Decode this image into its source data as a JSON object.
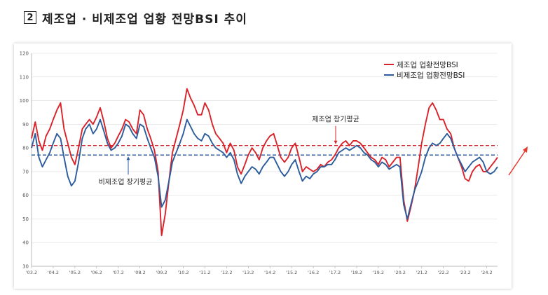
{
  "header": {
    "number": "2",
    "title": "제조업 · 비제조업 업황 전망BSI 추이"
  },
  "colors": {
    "manufacturing": "#d9232a",
    "non_manufacturing": "#2c5c9c",
    "arrow": "#e53b2c",
    "grid": "#dddddd"
  },
  "chart_data": {
    "type": "line",
    "title": "제조업 · 비제조업 업황 전망BSI 추이",
    "xlabel": "",
    "ylabel": "",
    "ylim": [
      30,
      120
    ],
    "yticks": [
      30,
      40,
      50,
      60,
      70,
      80,
      90,
      100,
      110,
      120
    ],
    "xticks": [
      "'03.2",
      "'04.2",
      "'05.2",
      "'06.2",
      "'07.2",
      "'08.2",
      "'09.2",
      "'10.2",
      "'11.2",
      "'12.2",
      "'13.2",
      "'14.2",
      "'15.2",
      "'16.2",
      "'17.2",
      "'18.2",
      "'19.2",
      "'20.2",
      "'21.2",
      "'22.2",
      "'23.2",
      "'24.2"
    ],
    "x_start": 2003.08,
    "x_end": 2024.58,
    "grid": true,
    "legend": "top-right",
    "series": [
      {
        "name": "제조업 업황전망BSI",
        "color": "#d9232a",
        "points": [
          [
            2003.08,
            84
          ],
          [
            2003.25,
            91
          ],
          [
            2003.42,
            83
          ],
          [
            2003.58,
            79
          ],
          [
            2003.75,
            85
          ],
          [
            2003.92,
            88
          ],
          [
            2004.08,
            92
          ],
          [
            2004.25,
            96
          ],
          [
            2004.42,
            99
          ],
          [
            2004.58,
            88
          ],
          [
            2004.75,
            82
          ],
          [
            2004.92,
            76
          ],
          [
            2005.08,
            73
          ],
          [
            2005.25,
            80
          ],
          [
            2005.42,
            88
          ],
          [
            2005.58,
            90
          ],
          [
            2005.75,
            92
          ],
          [
            2005.92,
            90
          ],
          [
            2006.08,
            93
          ],
          [
            2006.25,
            97
          ],
          [
            2006.42,
            91
          ],
          [
            2006.58,
            84
          ],
          [
            2006.75,
            80
          ],
          [
            2006.92,
            82
          ],
          [
            2007.08,
            85
          ],
          [
            2007.25,
            88
          ],
          [
            2007.42,
            92
          ],
          [
            2007.58,
            91
          ],
          [
            2007.75,
            88
          ],
          [
            2007.92,
            86
          ],
          [
            2008.08,
            96
          ],
          [
            2008.25,
            94
          ],
          [
            2008.42,
            88
          ],
          [
            2008.58,
            84
          ],
          [
            2008.75,
            79
          ],
          [
            2008.92,
            70
          ],
          [
            2009.08,
            43
          ],
          [
            2009.25,
            52
          ],
          [
            2009.42,
            66
          ],
          [
            2009.58,
            78
          ],
          [
            2009.75,
            84
          ],
          [
            2009.92,
            90
          ],
          [
            2010.08,
            96
          ],
          [
            2010.25,
            105
          ],
          [
            2010.42,
            101
          ],
          [
            2010.58,
            98
          ],
          [
            2010.75,
            94
          ],
          [
            2010.92,
            94
          ],
          [
            2011.08,
            99
          ],
          [
            2011.25,
            96
          ],
          [
            2011.42,
            90
          ],
          [
            2011.58,
            86
          ],
          [
            2011.75,
            84
          ],
          [
            2011.92,
            82
          ],
          [
            2012.08,
            78
          ],
          [
            2012.25,
            82
          ],
          [
            2012.42,
            79
          ],
          [
            2012.58,
            72
          ],
          [
            2012.75,
            69
          ],
          [
            2012.92,
            73
          ],
          [
            2013.08,
            77
          ],
          [
            2013.25,
            80
          ],
          [
            2013.42,
            78
          ],
          [
            2013.58,
            75
          ],
          [
            2013.75,
            80
          ],
          [
            2013.92,
            83
          ],
          [
            2014.08,
            85
          ],
          [
            2014.25,
            86
          ],
          [
            2014.42,
            81
          ],
          [
            2014.58,
            76
          ],
          [
            2014.75,
            74
          ],
          [
            2014.92,
            76
          ],
          [
            2015.08,
            80
          ],
          [
            2015.25,
            82
          ],
          [
            2015.42,
            76
          ],
          [
            2015.58,
            70
          ],
          [
            2015.75,
            72
          ],
          [
            2015.92,
            71
          ],
          [
            2016.08,
            70
          ],
          [
            2016.25,
            71
          ],
          [
            2016.42,
            73
          ],
          [
            2016.58,
            72
          ],
          [
            2016.75,
            74
          ],
          [
            2016.92,
            75
          ],
          [
            2017.08,
            77
          ],
          [
            2017.25,
            80
          ],
          [
            2017.42,
            82
          ],
          [
            2017.58,
            83
          ],
          [
            2017.75,
            81
          ],
          [
            2017.92,
            83
          ],
          [
            2018.08,
            83
          ],
          [
            2018.25,
            82
          ],
          [
            2018.42,
            80
          ],
          [
            2018.58,
            78
          ],
          [
            2018.75,
            76
          ],
          [
            2018.92,
            75
          ],
          [
            2019.08,
            73
          ],
          [
            2019.25,
            76
          ],
          [
            2019.42,
            75
          ],
          [
            2019.58,
            72
          ],
          [
            2019.75,
            74
          ],
          [
            2019.92,
            76
          ],
          [
            2020.08,
            76
          ],
          [
            2020.25,
            58
          ],
          [
            2020.42,
            49
          ],
          [
            2020.58,
            55
          ],
          [
            2020.75,
            62
          ],
          [
            2020.92,
            72
          ],
          [
            2021.08,
            82
          ],
          [
            2021.25,
            90
          ],
          [
            2021.42,
            97
          ],
          [
            2021.58,
            99
          ],
          [
            2021.75,
            96
          ],
          [
            2021.92,
            92
          ],
          [
            2022.08,
            92
          ],
          [
            2022.25,
            88
          ],
          [
            2022.42,
            86
          ],
          [
            2022.58,
            80
          ],
          [
            2022.75,
            76
          ],
          [
            2022.92,
            72
          ],
          [
            2023.08,
            67
          ],
          [
            2023.25,
            66
          ],
          [
            2023.42,
            70
          ],
          [
            2023.58,
            72
          ],
          [
            2023.75,
            73
          ],
          [
            2023.92,
            70
          ],
          [
            2024.08,
            70
          ],
          [
            2024.25,
            72
          ],
          [
            2024.42,
            74
          ],
          [
            2024.58,
            76
          ]
        ]
      },
      {
        "name": "비제조업 업황전망BSI",
        "color": "#2c5c9c",
        "points": [
          [
            2003.08,
            80
          ],
          [
            2003.25,
            86
          ],
          [
            2003.42,
            76
          ],
          [
            2003.58,
            72
          ],
          [
            2003.75,
            75
          ],
          [
            2003.92,
            78
          ],
          [
            2004.08,
            82
          ],
          [
            2004.25,
            86
          ],
          [
            2004.42,
            84
          ],
          [
            2004.58,
            76
          ],
          [
            2004.75,
            68
          ],
          [
            2004.92,
            64
          ],
          [
            2005.08,
            66
          ],
          [
            2005.25,
            74
          ],
          [
            2005.42,
            84
          ],
          [
            2005.58,
            88
          ],
          [
            2005.75,
            90
          ],
          [
            2005.92,
            86
          ],
          [
            2006.08,
            88
          ],
          [
            2006.25,
            92
          ],
          [
            2006.42,
            87
          ],
          [
            2006.58,
            82
          ],
          [
            2006.75,
            79
          ],
          [
            2006.92,
            80
          ],
          [
            2007.08,
            82
          ],
          [
            2007.25,
            85
          ],
          [
            2007.42,
            90
          ],
          [
            2007.58,
            89
          ],
          [
            2007.75,
            86
          ],
          [
            2007.92,
            84
          ],
          [
            2008.08,
            90
          ],
          [
            2008.25,
            89
          ],
          [
            2008.42,
            84
          ],
          [
            2008.58,
            80
          ],
          [
            2008.75,
            76
          ],
          [
            2008.92,
            68
          ],
          [
            2009.08,
            55
          ],
          [
            2009.25,
            58
          ],
          [
            2009.42,
            66
          ],
          [
            2009.58,
            74
          ],
          [
            2009.75,
            78
          ],
          [
            2009.92,
            82
          ],
          [
            2010.08,
            86
          ],
          [
            2010.25,
            92
          ],
          [
            2010.42,
            89
          ],
          [
            2010.58,
            86
          ],
          [
            2010.75,
            84
          ],
          [
            2010.92,
            83
          ],
          [
            2011.08,
            86
          ],
          [
            2011.25,
            85
          ],
          [
            2011.42,
            82
          ],
          [
            2011.58,
            80
          ],
          [
            2011.75,
            79
          ],
          [
            2011.92,
            78
          ],
          [
            2012.08,
            76
          ],
          [
            2012.25,
            78
          ],
          [
            2012.42,
            75
          ],
          [
            2012.58,
            69
          ],
          [
            2012.75,
            65
          ],
          [
            2012.92,
            68
          ],
          [
            2013.08,
            70
          ],
          [
            2013.25,
            72
          ],
          [
            2013.42,
            71
          ],
          [
            2013.58,
            69
          ],
          [
            2013.75,
            72
          ],
          [
            2013.92,
            74
          ],
          [
            2014.08,
            76
          ],
          [
            2014.25,
            76
          ],
          [
            2014.42,
            73
          ],
          [
            2014.58,
            70
          ],
          [
            2014.75,
            68
          ],
          [
            2014.92,
            70
          ],
          [
            2015.08,
            73
          ],
          [
            2015.25,
            75
          ],
          [
            2015.42,
            70
          ],
          [
            2015.58,
            66
          ],
          [
            2015.75,
            68
          ],
          [
            2015.92,
            67
          ],
          [
            2016.08,
            69
          ],
          [
            2016.25,
            70
          ],
          [
            2016.42,
            72
          ],
          [
            2016.58,
            72
          ],
          [
            2016.75,
            73
          ],
          [
            2016.92,
            73
          ],
          [
            2017.08,
            75
          ],
          [
            2017.25,
            78
          ],
          [
            2017.42,
            79
          ],
          [
            2017.58,
            80
          ],
          [
            2017.75,
            79
          ],
          [
            2017.92,
            80
          ],
          [
            2018.08,
            81
          ],
          [
            2018.25,
            80
          ],
          [
            2018.42,
            78
          ],
          [
            2018.58,
            77
          ],
          [
            2018.75,
            75
          ],
          [
            2018.92,
            74
          ],
          [
            2019.08,
            72
          ],
          [
            2019.25,
            74
          ],
          [
            2019.42,
            73
          ],
          [
            2019.58,
            71
          ],
          [
            2019.75,
            72
          ],
          [
            2019.92,
            73
          ],
          [
            2020.08,
            72
          ],
          [
            2020.25,
            56
          ],
          [
            2020.42,
            50
          ],
          [
            2020.58,
            56
          ],
          [
            2020.75,
            62
          ],
          [
            2020.92,
            66
          ],
          [
            2021.08,
            70
          ],
          [
            2021.25,
            76
          ],
          [
            2021.42,
            80
          ],
          [
            2021.58,
            82
          ],
          [
            2021.75,
            81
          ],
          [
            2021.92,
            82
          ],
          [
            2022.08,
            84
          ],
          [
            2022.25,
            86
          ],
          [
            2022.42,
            84
          ],
          [
            2022.58,
            80
          ],
          [
            2022.75,
            76
          ],
          [
            2022.92,
            73
          ],
          [
            2023.08,
            70
          ],
          [
            2023.25,
            72
          ],
          [
            2023.42,
            74
          ],
          [
            2023.58,
            75
          ],
          [
            2023.75,
            76
          ],
          [
            2023.92,
            74
          ],
          [
            2024.08,
            70
          ],
          [
            2024.25,
            69
          ],
          [
            2024.42,
            70
          ],
          [
            2024.58,
            72
          ]
        ]
      }
    ],
    "reference_lines": [
      {
        "name": "제조업 장기평균",
        "value": 81,
        "color": "#d9232a"
      },
      {
        "name": "비제조업 장기평균",
        "value": 77,
        "color": "#2c5c9c"
      }
    ],
    "annotations": {
      "manufacturing_avg": "제조업 장기평균",
      "non_manufacturing_avg": "비제조업 장기평균"
    }
  }
}
